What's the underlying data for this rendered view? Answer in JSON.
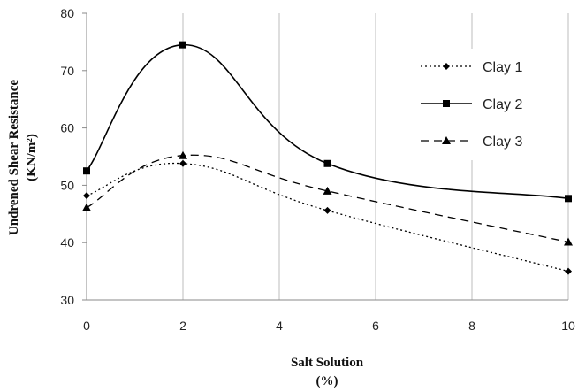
{
  "chart_data": {
    "type": "line",
    "xlabel": "Salt Solution",
    "xlabel_unit": "(%)",
    "ylabel": "Undrened Shear Resistance",
    "ylabel_unit": "(KN/m²)",
    "xlim": [
      0,
      10
    ],
    "ylim": [
      30,
      80
    ],
    "x_ticks": [
      "0",
      "2",
      "4",
      "6",
      "8",
      "10"
    ],
    "y_ticks": [
      "30",
      "40",
      "50",
      "60",
      "70",
      "80"
    ],
    "grid": "vertical",
    "legend_position": "right",
    "x": [
      0,
      2,
      5,
      10
    ],
    "series": [
      {
        "name": "Clay 1",
        "values": [
          48.2,
          53.8,
          45.6,
          35.0
        ],
        "marker": "diamond",
        "line": "dotted",
        "color": "#000000"
      },
      {
        "name": "Clay 2",
        "values": [
          52.5,
          74.5,
          53.8,
          47.7
        ],
        "marker": "square",
        "line": "solid",
        "color": "#000000"
      },
      {
        "name": "Clay 3",
        "values": [
          46.1,
          55.2,
          49.0,
          40.1
        ],
        "marker": "triangle",
        "line": "dashed",
        "color": "#000000"
      }
    ]
  }
}
